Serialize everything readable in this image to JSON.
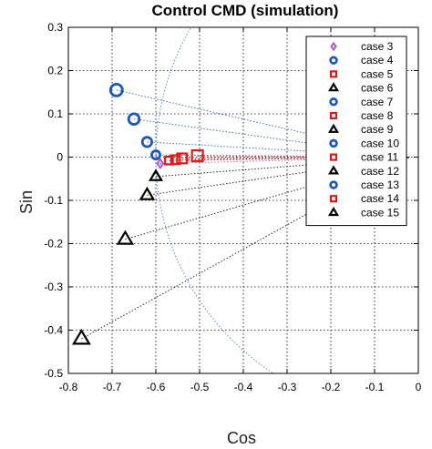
{
  "chart_data": {
    "type": "scatter",
    "title": "Control CMD (simulation)",
    "xlabel": "Cos",
    "ylabel": "Sin",
    "xlim": [
      -0.8,
      0
    ],
    "ylim": [
      -0.5,
      0.3
    ],
    "xticks": [
      "-0.8",
      "-0.7",
      "-0.6",
      "-0.5",
      "-0.4",
      "-0.3",
      "-0.2",
      "-0.1",
      "0"
    ],
    "yticks": [
      "0.3",
      "0.2",
      "0.1",
      "0",
      "-0.1",
      "-0.2",
      "-0.3",
      "-0.4",
      "-0.5"
    ],
    "grid": true,
    "legend_position": "top-right",
    "reference_point": {
      "x": -0.02,
      "y": 0.0
    },
    "circle_arc": {
      "center_x": 0.0,
      "center_y": 0.0,
      "radius": 0.6,
      "color": "#5b8fd0",
      "style": "dotted"
    },
    "series": [
      {
        "name": "case 3",
        "marker": "diamond",
        "color": "#b24bb8",
        "x": [
          -0.59
        ],
        "y": [
          -0.015
        ]
      },
      {
        "name": "case 4",
        "marker": "circle",
        "color": "#1f57b7",
        "x": [
          -0.6
        ],
        "y": [
          0.005
        ]
      },
      {
        "name": "case 5",
        "marker": "square",
        "color": "#dd1a1a",
        "x": [
          -0.57
        ],
        "y": [
          -0.008
        ]
      },
      {
        "name": "case 6",
        "marker": "triangle",
        "color": "#000000",
        "x": [
          -0.6
        ],
        "y": [
          -0.045
        ]
      },
      {
        "name": "case 7",
        "marker": "circle",
        "color": "#1f57b7",
        "x": [
          -0.62
        ],
        "y": [
          0.035
        ]
      },
      {
        "name": "case 8",
        "marker": "square",
        "color": "#dd1a1a",
        "x": [
          -0.555
        ],
        "y": [
          -0.006
        ]
      },
      {
        "name": "case 9",
        "marker": "triangle",
        "color": "#000000",
        "x": [
          -0.62
        ],
        "y": [
          -0.088
        ]
      },
      {
        "name": "case 10",
        "marker": "circle",
        "color": "#1f57b7",
        "x": [
          -0.65
        ],
        "y": [
          0.088
        ]
      },
      {
        "name": "case 11",
        "marker": "square",
        "color": "#dd1a1a",
        "x": [
          -0.54
        ],
        "y": [
          -0.003
        ]
      },
      {
        "name": "case 12",
        "marker": "triangle",
        "color": "#000000",
        "x": [
          -0.67
        ],
        "y": [
          -0.19
        ]
      },
      {
        "name": "case 13",
        "marker": "circle",
        "color": "#1f57b7",
        "x": [
          -0.69
        ],
        "y": [
          0.155
        ]
      },
      {
        "name": "case 14",
        "marker": "square",
        "color": "#dd1a1a",
        "x": [
          -0.505
        ],
        "y": [
          0.003
        ]
      },
      {
        "name": "case 15",
        "marker": "triangle",
        "color": "#000000",
        "x": [
          -0.77
        ],
        "y": [
          -0.42
        ]
      }
    ]
  }
}
